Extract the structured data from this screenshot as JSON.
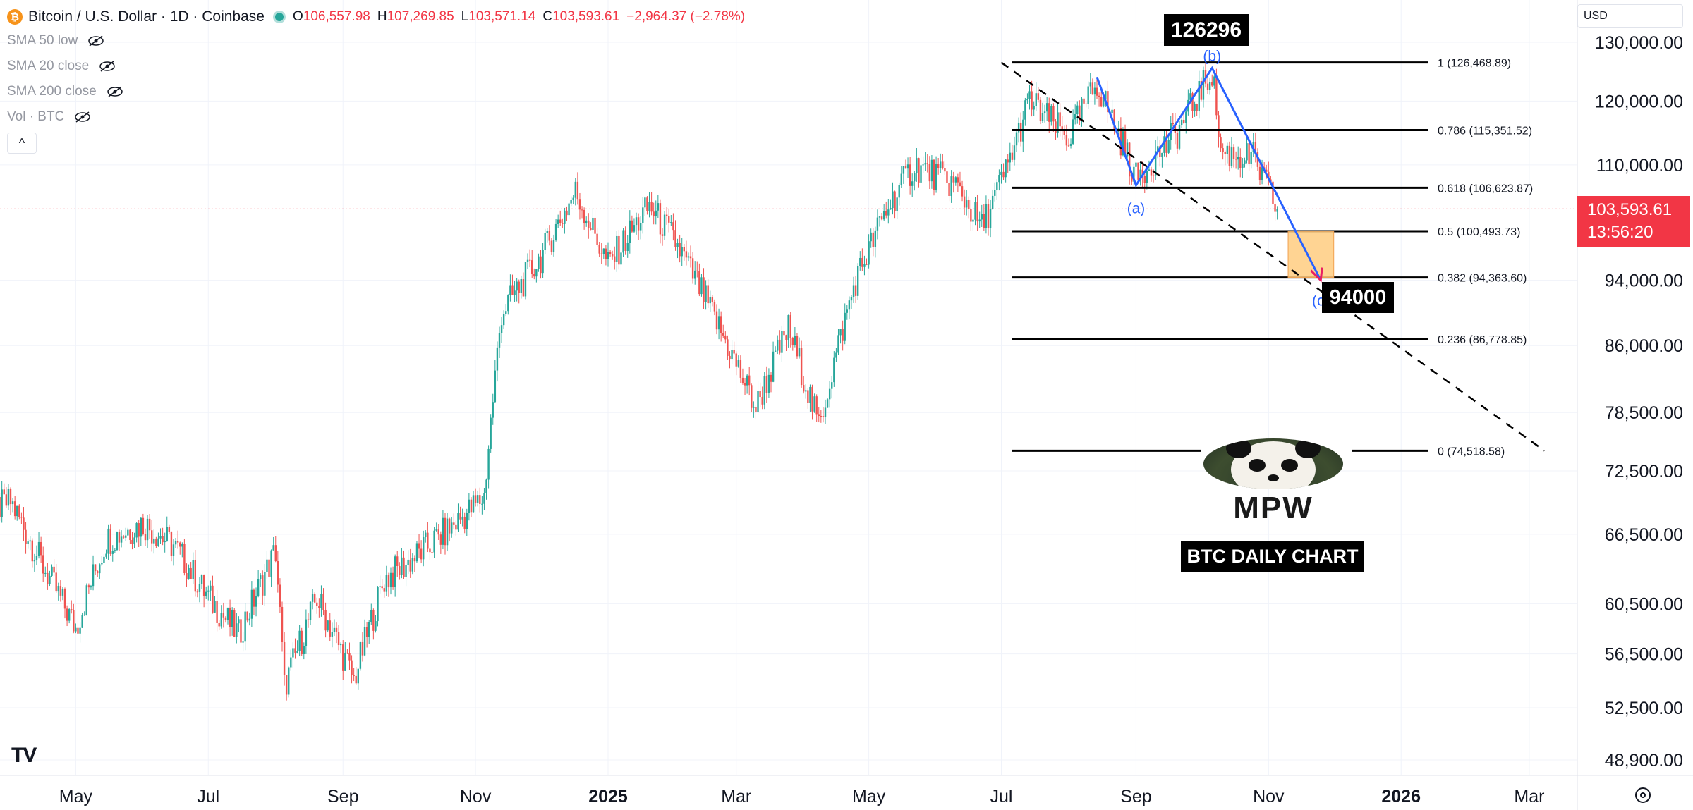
{
  "header": {
    "symbol": "Bitcoin / U.S. Dollar · 1D · Coinbase",
    "open_label": "O",
    "open": "106,557.98",
    "high_label": "H",
    "high": "107,269.85",
    "low_label": "L",
    "low": "103,571.14",
    "close_label": "C",
    "close": "103,593.61",
    "change": "−2,964.37 (−2.78%)"
  },
  "indicators": [
    "SMA 50 low",
    "SMA 20 close",
    "SMA 200 close",
    "Vol · BTC"
  ],
  "currency": "USD",
  "current_price": {
    "price": "103,593.61",
    "countdown": "13:56:20"
  },
  "colors": {
    "up": "#26a69a",
    "down": "#ef5350",
    "pattern": "#2962ff",
    "target_box": "#ffcc80",
    "price_tag": "#f23645"
  },
  "annotations": {
    "peak_label": "126296",
    "target_label": "94000",
    "brand": "MPW",
    "caption": "BTC DAILY CHART",
    "wave_labels": [
      "(a)",
      "(b)",
      "(c)"
    ]
  },
  "chart_data": {
    "type": "candlestick",
    "ohlc_path_close": [
      [
        "2024-03-15",
        68000
      ],
      [
        "2024-04-01",
        69500
      ],
      [
        "2024-04-15",
        64000
      ],
      [
        "2024-05-01",
        58500
      ],
      [
        "2024-05-15",
        66000
      ],
      [
        "2024-06-01",
        67500
      ],
      [
        "2024-06-15",
        65500
      ],
      [
        "2024-07-01",
        61000
      ],
      [
        "2024-07-15",
        58000
      ],
      [
        "2024-08-01",
        65000
      ],
      [
        "2024-08-05",
        54000
      ],
      [
        "2024-08-20",
        61000
      ],
      [
        "2024-09-06",
        54500
      ],
      [
        "2024-09-20",
        62500
      ],
      [
        "2024-10-01",
        64000
      ],
      [
        "2024-10-20",
        67000
      ],
      [
        "2024-11-05",
        70000
      ],
      [
        "2024-11-13",
        90000
      ],
      [
        "2024-12-01",
        97000
      ],
      [
        "2024-12-17",
        106000
      ],
      [
        "2025-01-01",
        96000
      ],
      [
        "2025-01-20",
        104000
      ],
      [
        "2025-02-01",
        99000
      ],
      [
        "2025-02-25",
        86000
      ],
      [
        "2025-03-10",
        79000
      ],
      [
        "2025-03-25",
        88000
      ],
      [
        "2025-04-08",
        77000
      ],
      [
        "2025-04-25",
        94000
      ],
      [
        "2025-05-10",
        104000
      ],
      [
        "2025-05-22",
        110000
      ],
      [
        "2025-06-10",
        107000
      ],
      [
        "2025-06-22",
        101000
      ],
      [
        "2025-07-03",
        109000
      ],
      [
        "2025-07-14",
        120000
      ],
      [
        "2025-08-01",
        114000
      ],
      [
        "2025-08-14",
        123000
      ],
      [
        "2025-09-01",
        108000
      ],
      [
        "2025-09-20",
        115000
      ],
      [
        "2025-10-06",
        125000
      ],
      [
        "2025-10-10",
        112000
      ],
      [
        "2025-10-25",
        111000
      ],
      [
        "2025-11-05",
        103593.61
      ]
    ],
    "fibonacci": [
      {
        "ratio": "1",
        "value": 126468.89,
        "label": "1 (126,468.89)"
      },
      {
        "ratio": "0.786",
        "value": 115351.52,
        "label": "0.786 (115,351.52)"
      },
      {
        "ratio": "0.618",
        "value": 106623.87,
        "label": "0.618 (106,623.87)"
      },
      {
        "ratio": "0.5",
        "value": 100493.73,
        "label": "0.5 (100,493.73)"
      },
      {
        "ratio": "0.382",
        "value": 94363.6,
        "label": "0.382 (94,363.60)"
      },
      {
        "ratio": "0.236",
        "value": 86778.85,
        "label": "0.236 (86,778.85)"
      },
      {
        "ratio": "0",
        "value": 74518.58,
        "label": "0 (74,518.58)"
      }
    ],
    "abc_pattern": [
      [
        "2025-08-14",
        124000
      ],
      [
        "2025-09-01",
        107000
      ],
      [
        "2025-10-06",
        125500
      ],
      [
        "2025-11-25",
        94000
      ]
    ],
    "dashed_trendline": [
      [
        "2025-07-01",
        126468.89
      ],
      [
        "2026-03-08",
        74518.58
      ]
    ],
    "target_zone": {
      "x_from": "2025-11-10",
      "x_to": "2025-12-01",
      "y_from": 94363.6,
      "y_to": 100493.73
    },
    "x_ticks": [
      "May",
      "Jul",
      "Sep",
      "Nov",
      "2025",
      "Mar",
      "May",
      "Jul",
      "Sep",
      "Nov",
      "2026",
      "Mar"
    ],
    "y_ticks": [
      "130,000.00",
      "120,000.00",
      "110,000.00",
      "94,000.00",
      "86,000.00",
      "78,500.00",
      "72,500.00",
      "66,500.00",
      "60,500.00",
      "56,500.00",
      "52,500.00",
      "48,900.00"
    ],
    "y_axis_scale": "log",
    "grid": true
  }
}
